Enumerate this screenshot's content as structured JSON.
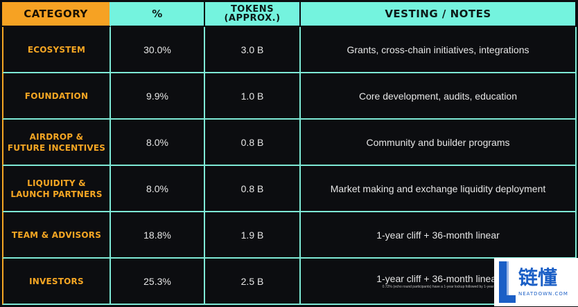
{
  "headers": {
    "category": "CATEGORY",
    "percent": "%",
    "tokens_line1": "TOKENS",
    "tokens_line2": "(APPROX.)",
    "notes": "VESTING / NOTES"
  },
  "rows": [
    {
      "cat1": "ECOSYSTEM",
      "cat2": "",
      "pct": "30.0%",
      "tokens": "3.0 B",
      "notes": "Grants, cross-chain initiatives, integrations",
      "subnote": ""
    },
    {
      "cat1": "FOUNDATION",
      "cat2": "",
      "pct": "9.9%",
      "tokens": "1.0 B",
      "notes": "Core development, audits, education",
      "subnote": ""
    },
    {
      "cat1": "AIRDROP &",
      "cat2": "FUTURE INCENTIVES",
      "pct": "8.0%",
      "tokens": "0.8 B",
      "notes": "Community and builder programs",
      "subnote": ""
    },
    {
      "cat1": "LIQUIDITY &",
      "cat2": "LAUNCH PARTNERS",
      "pct": "8.0%",
      "tokens": "0.8 B",
      "notes": "Market making and exchange liquidity deployment",
      "subnote": ""
    },
    {
      "cat1": "TEAM & ADVISORS",
      "cat2": "",
      "pct": "18.8%",
      "tokens": "1.9 B",
      "notes": "1-year cliff + 36-month linear",
      "subnote": ""
    },
    {
      "cat1": "INVESTORS",
      "cat2": "",
      "pct": "25.3%",
      "tokens": "2.5 B",
      "notes": "1-year cliff + 36-month linear",
      "subnote": "0.72% (echo round participants) have a 1-year lockup followed by 1-year"
    }
  ],
  "watermark": {
    "cn": "链懂",
    "en": "NEATDOWN.COM"
  }
}
